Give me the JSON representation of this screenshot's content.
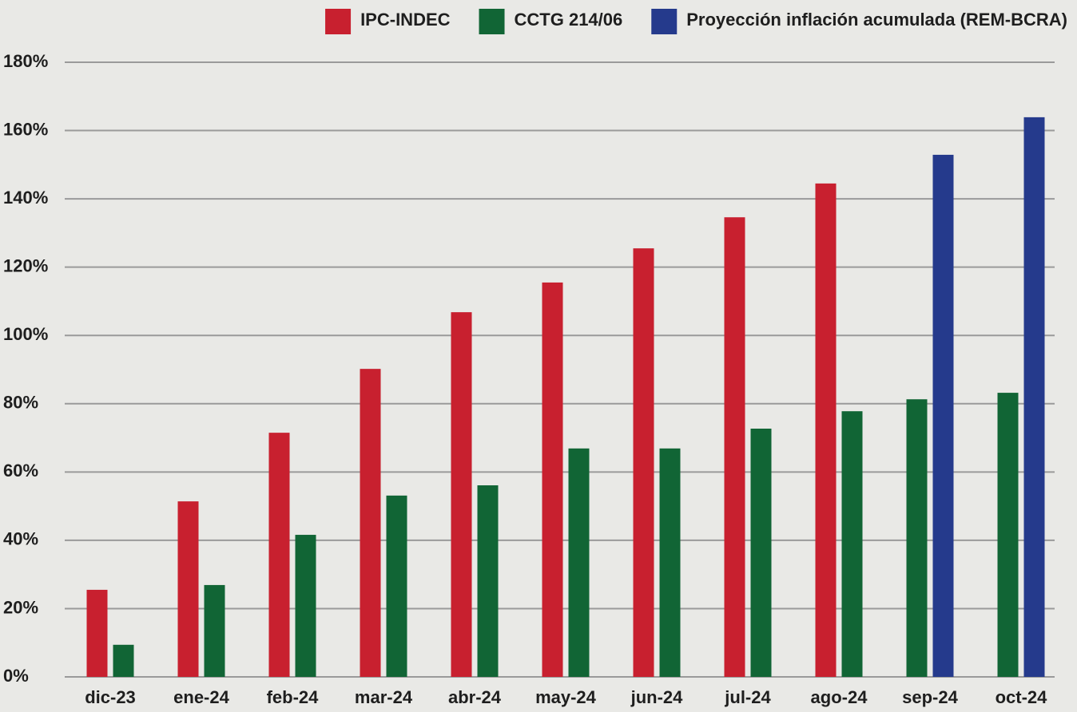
{
  "chart_data": {
    "type": "bar",
    "categories": [
      "dic-23",
      "ene-24",
      "feb-24",
      "mar-24",
      "abr-24",
      "may-24",
      "jun-24",
      "jul-24",
      "ago-24",
      "sep-24",
      "oct-24"
    ],
    "series": [
      {
        "name": "IPC-INDEC",
        "color": "#c8202f",
        "values": [
          25.5,
          51.4,
          71.5,
          90.2,
          106.8,
          115.5,
          125.5,
          134.6,
          144.5,
          null,
          null
        ]
      },
      {
        "name": "CCTG 214/06",
        "color": "#116535",
        "values": [
          9.4,
          26.9,
          41.6,
          53.1,
          56.1,
          66.9,
          66.9,
          72.7,
          77.8,
          81.3,
          83.2
        ]
      },
      {
        "name": "Proyección inflación acumulada (REM-BCRA)",
        "color": "#253a8c",
        "values": [
          null,
          null,
          null,
          null,
          null,
          null,
          null,
          null,
          null,
          152.9,
          163.9
        ]
      }
    ],
    "ylim": [
      0,
      180
    ],
    "yticks": [
      {
        "value": 0,
        "label": "0%"
      },
      {
        "value": 20,
        "label": "20%"
      },
      {
        "value": 40,
        "label": "40%"
      },
      {
        "value": 60,
        "label": "60%"
      },
      {
        "value": 80,
        "label": "80%"
      },
      {
        "value": 100,
        "label": "100%"
      },
      {
        "value": 120,
        "label": "120%"
      },
      {
        "value": 140,
        "label": "140%"
      },
      {
        "value": 160,
        "label": "160%"
      },
      {
        "value": 180,
        "label": "180%"
      }
    ],
    "grid": true,
    "legend": "top-right"
  }
}
